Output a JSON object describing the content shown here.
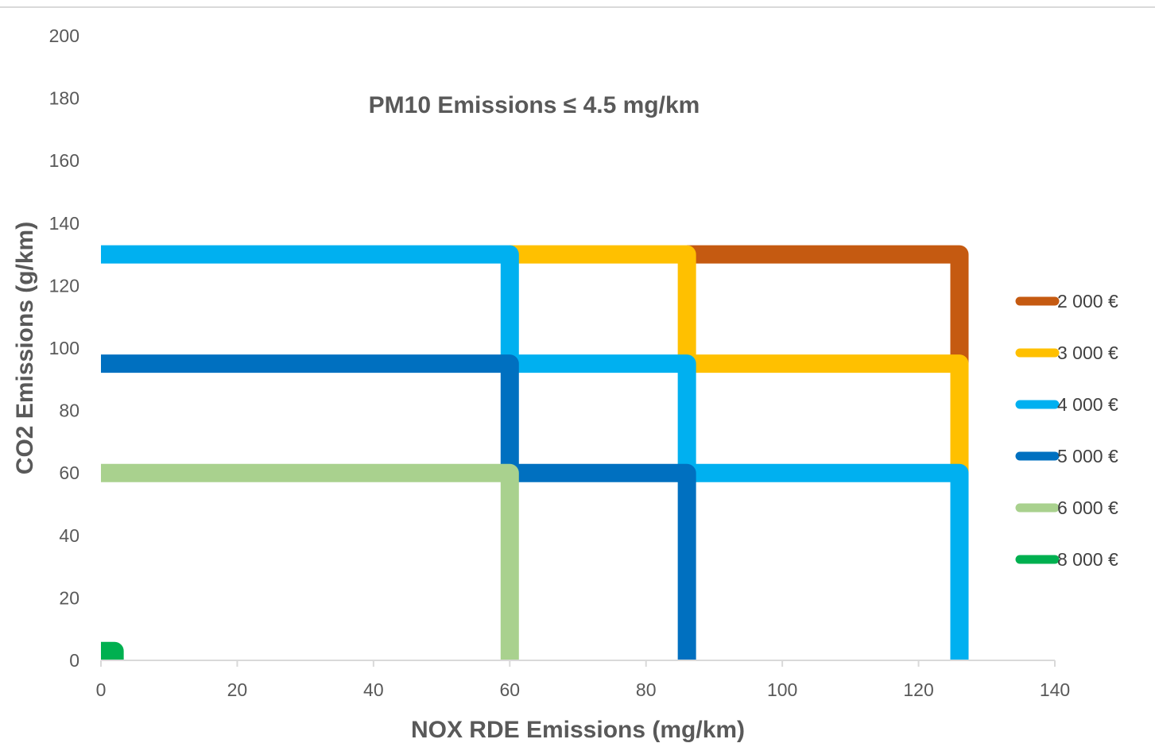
{
  "chart_data": {
    "type": "line",
    "title": "PM10 Emissions ≤ 4.5 mg/km",
    "xlabel": "NOX RDE Emissions (mg/km)",
    "ylabel": "CO2 Emissions (g/km)",
    "xlim": [
      0,
      140
    ],
    "ylim": [
      0,
      200
    ],
    "xticks": [
      0,
      20,
      40,
      60,
      80,
      100,
      120,
      140
    ],
    "yticks": [
      0,
      20,
      40,
      60,
      80,
      100,
      120,
      140,
      160,
      180,
      200
    ],
    "grid": false,
    "legend_position": "right",
    "series": [
      {
        "name": "2 000 €",
        "color": "#C55A11",
        "segments": [
          [
            [
              86,
              130
            ],
            [
              126,
              130
            ],
            [
              126,
              95
            ]
          ]
        ]
      },
      {
        "name": "3 000 €",
        "color": "#FFC000",
        "segments": [
          [
            [
              60,
              130
            ],
            [
              86,
              130
            ],
            [
              86,
              95
            ]
          ],
          [
            [
              86,
              95
            ],
            [
              126,
              95
            ],
            [
              126,
              60
            ]
          ]
        ]
      },
      {
        "name": "4 000 €",
        "color": "#00B0F0",
        "segments": [
          [
            [
              0,
              130
            ],
            [
              60,
              130
            ],
            [
              60,
              95
            ]
          ],
          [
            [
              60,
              95
            ],
            [
              86,
              95
            ],
            [
              86,
              60
            ]
          ],
          [
            [
              86,
              60
            ],
            [
              126,
              60
            ],
            [
              126,
              0
            ]
          ]
        ]
      },
      {
        "name": "5 000 €",
        "color": "#0070C0",
        "segments": [
          [
            [
              0,
              95
            ],
            [
              60,
              95
            ],
            [
              60,
              60
            ]
          ],
          [
            [
              60,
              60
            ],
            [
              86,
              60
            ],
            [
              86,
              0
            ]
          ]
        ]
      },
      {
        "name": "6 000 €",
        "color": "#A9D18E",
        "segments": [
          [
            [
              0,
              60
            ],
            [
              60,
              60
            ],
            [
              60,
              0
            ]
          ]
        ]
      },
      {
        "name": "8 000 €",
        "color": "#00B050",
        "segments": [
          [
            [
              0,
              3
            ],
            [
              2,
              3
            ],
            [
              2,
              0
            ]
          ]
        ]
      }
    ]
  }
}
